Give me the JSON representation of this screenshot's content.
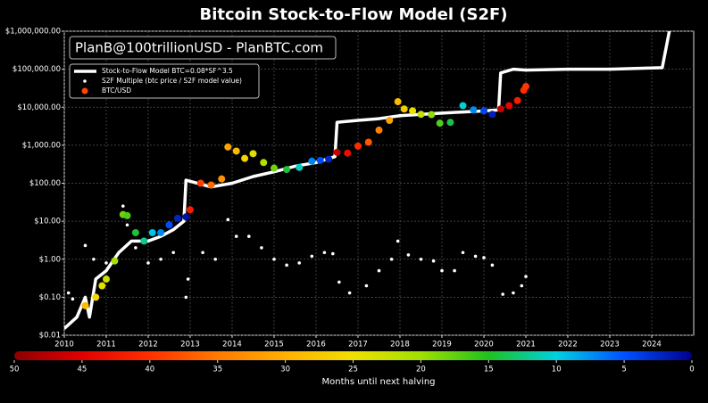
{
  "chart_data": {
    "type": "scatter",
    "title": "Bitcoin Stock-to-Flow Model (S2F)",
    "annotation": "PlanB@100trillionUSD - PlanBTC.com",
    "log_y": true,
    "grid": true,
    "legend": "upper left",
    "xlim": [
      2010,
      2025
    ],
    "xticks": [
      2010,
      2011,
      2012,
      2013,
      2014,
      2015,
      2016,
      2017,
      2018,
      2019,
      2020,
      2021,
      2022,
      2023,
      2024
    ],
    "ylim": [
      0.01,
      1000000
    ],
    "yticks": [
      {
        "value": 0.01,
        "label": "$0.01"
      },
      {
        "value": 0.1,
        "label": "$0.10"
      },
      {
        "value": 1,
        "label": "$1.00"
      },
      {
        "value": 10,
        "label": "$10.00"
      },
      {
        "value": 100,
        "label": "$100.00"
      },
      {
        "value": 1000,
        "label": "$1,000.00"
      },
      {
        "value": 10000,
        "label": "$10,000.00"
      },
      {
        "value": 100000,
        "label": "$100,000.00"
      },
      {
        "value": 1000000,
        "label": "$1,000,000.00"
      }
    ],
    "series": [
      {
        "name": "Stock-to-Flow Model BTC=0.08*SF^3.5",
        "type": "line",
        "color": "#ffffff",
        "x": [
          2010.0,
          2010.3,
          2010.5,
          2010.6,
          2010.75,
          2011.0,
          2011.3,
          2011.6,
          2012.0,
          2012.3,
          2012.6,
          2012.85,
          2012.9,
          2013.5,
          2014.0,
          2014.5,
          2015.0,
          2015.5,
          2016.0,
          2016.45,
          2016.5,
          2017.0,
          2017.5,
          2018.0,
          2018.5,
          2019.0,
          2019.5,
          2020.0,
          2020.35,
          2020.4,
          2020.7,
          2021.0,
          2022.0,
          2023.0,
          2024.25,
          2024.45
        ],
        "values": [
          0.015,
          0.03,
          0.1,
          0.03,
          0.3,
          0.5,
          1.5,
          3,
          3,
          4,
          6,
          10,
          120,
          80,
          100,
          150,
          200,
          280,
          350,
          500,
          4000,
          4500,
          5000,
          6000,
          6500,
          7000,
          7500,
          8000,
          8500,
          80000,
          100000,
          95000,
          100000,
          100000,
          110000,
          1500000
        ]
      },
      {
        "name": "S2F Multiple (btc price / S2F model value)",
        "type": "scatter",
        "color": "#ffffff",
        "x": [
          2010.1,
          2010.2,
          2010.5,
          2010.7,
          2011.0,
          2011.4,
          2011.5,
          2011.7,
          2012.0,
          2012.3,
          2012.6,
          2012.9,
          2012.95,
          2013.3,
          2013.6,
          2013.9,
          2014.1,
          2014.4,
          2014.7,
          2015.0,
          2015.3,
          2015.6,
          2015.9,
          2016.2,
          2016.4,
          2016.55,
          2016.8,
          2017.2,
          2017.5,
          2017.8,
          2017.95,
          2018.2,
          2018.5,
          2018.8,
          2019.0,
          2019.3,
          2019.5,
          2019.8,
          2020.0,
          2020.2,
          2020.45,
          2020.7,
          2020.9,
          2021.0
        ],
        "values": [
          0.13,
          0.09,
          2.3,
          1.0,
          0.8,
          25,
          8,
          2,
          0.8,
          1.0,
          1.5,
          0.1,
          0.3,
          1.5,
          1.0,
          11,
          4,
          4,
          2,
          1.0,
          0.7,
          0.8,
          1.2,
          1.5,
          1.4,
          0.25,
          0.13,
          0.2,
          0.5,
          1.0,
          3.0,
          1.3,
          1.0,
          0.9,
          0.5,
          0.5,
          1.5,
          1.2,
          1.1,
          0.7,
          0.12,
          0.13,
          0.2,
          0.35
        ]
      },
      {
        "name": "BTC/USD",
        "type": "scatter",
        "color": "#ff4500",
        "x": [
          2010.5,
          2010.75,
          2010.9,
          2011.0,
          2011.2,
          2011.4,
          2011.5,
          2011.7,
          2011.9,
          2012.1,
          2012.3,
          2012.5,
          2012.7,
          2012.9,
          2013.0,
          2013.25,
          2013.5,
          2013.75,
          2013.9,
          2014.1,
          2014.3,
          2014.5,
          2014.75,
          2015.0,
          2015.3,
          2015.6,
          2015.9,
          2016.1,
          2016.3,
          2016.5,
          2016.75,
          2017.0,
          2017.25,
          2017.5,
          2017.75,
          2017.95,
          2018.1,
          2018.3,
          2018.5,
          2018.75,
          2018.95,
          2019.2,
          2019.5,
          2019.75,
          2020.0,
          2020.2,
          2020.4,
          2020.6,
          2020.8,
          2020.95,
          2021.0
        ],
        "values": [
          0.06,
          0.1,
          0.2,
          0.3,
          0.9,
          15,
          14,
          5,
          3,
          5,
          5,
          8,
          12,
          13,
          20,
          100,
          90,
          130,
          900,
          700,
          450,
          600,
          350,
          250,
          230,
          260,
          380,
          400,
          430,
          650,
          620,
          950,
          1200,
          2500,
          4500,
          14000,
          9000,
          8000,
          6500,
          6400,
          3800,
          4000,
          11000,
          8500,
          8000,
          6500,
          9000,
          11000,
          15000,
          28000,
          35000
        ],
        "color_values": [
          28.8,
          25.8,
          24,
          22.8,
          20.4,
          18,
          16.8,
          14.4,
          12,
          9.6,
          7.2,
          4.8,
          2.4,
          1,
          42,
          39,
          36,
          33,
          31.2,
          28.8,
          26.4,
          24,
          21,
          18,
          14.4,
          10.8,
          7.2,
          4.8,
          2.4,
          46.4,
          43.4,
          40.4,
          37.4,
          34.4,
          31.4,
          29,
          27.2,
          24.8,
          22.4,
          19.4,
          17,
          14,
          10.4,
          7.4,
          4.4,
          2,
          46.8,
          44.4,
          42,
          40.2,
          39.6
        ]
      }
    ],
    "colorbar": {
      "label": "Months until next halving",
      "lim": [
        50,
        0
      ],
      "ticks": [
        50,
        45,
        40,
        35,
        30,
        25,
        20,
        15,
        10,
        5,
        0
      ],
      "colors": [
        "#8b0000",
        "#e00000",
        "#ff3000",
        "#ff7a00",
        "#ffb000",
        "#f0e000",
        "#a0e000",
        "#20c020",
        "#00d0e0",
        "#0050ff",
        "#00008b"
      ]
    }
  }
}
